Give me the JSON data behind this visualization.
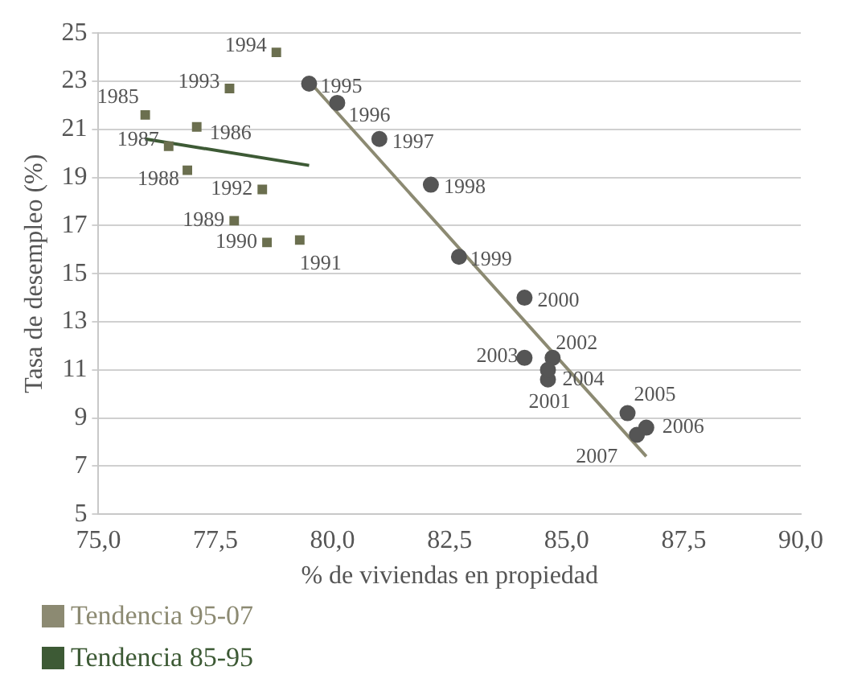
{
  "chart_data": {
    "type": "scatter",
    "xlabel": "% de viviendas en propiedad",
    "ylabel": "Tasa de desempleo (%)",
    "xlim": [
      75,
      90
    ],
    "xticks": [
      {
        "value": 75,
        "label": "75,0"
      },
      {
        "value": 77.5,
        "label": "77,5"
      },
      {
        "value": 80,
        "label": "80,0"
      },
      {
        "value": 82.5,
        "label": "82,5"
      },
      {
        "value": 85,
        "label": "85,0"
      },
      {
        "value": 87.5,
        "label": "87,5"
      },
      {
        "value": 90,
        "label": "90,0"
      }
    ],
    "ylim": [
      5,
      25
    ],
    "yticks": [
      5,
      7,
      9,
      11,
      13,
      15,
      17,
      19,
      21,
      23,
      25
    ],
    "grid": "y",
    "legend": "bottom",
    "series": [
      {
        "marker": "square",
        "color": "#6b6f4f",
        "x": [
          76.0,
          77.1,
          76.5,
          76.9,
          77.9,
          78.6,
          79.3,
          78.5,
          77.8,
          78.8
        ],
        "values": [
          21.6,
          21.1,
          20.3,
          19.3,
          17.2,
          16.3,
          16.4,
          18.5,
          22.7,
          24.2
        ]
      },
      {
        "marker": "circle",
        "color": "#555555",
        "x": [
          79.5,
          80.1,
          81.0,
          82.1,
          82.7,
          84.1,
          84.6,
          84.7,
          84.1,
          84.6,
          86.3,
          86.7,
          86.5
        ],
        "values": [
          22.9,
          22.1,
          20.6,
          18.7,
          15.7,
          14.0,
          10.6,
          11.5,
          11.5,
          11.0,
          9.2,
          8.6,
          8.3
        ]
      },
      {
        "type": "line",
        "name": "Tendencia 95-07",
        "color": "#8c8a72",
        "x": [
          79.5,
          86.7
        ],
        "values": [
          23.0,
          7.4
        ]
      },
      {
        "type": "line",
        "name": "Tendencia 85-95",
        "color": "#3d5a35",
        "x": [
          76.0,
          79.5
        ],
        "values": [
          20.6,
          19.5
        ]
      }
    ],
    "annotations": [
      {
        "text": "1985",
        "x": 76.0,
        "y": 21.6
      },
      {
        "text": "1986",
        "x": 77.1,
        "y": 21.1
      },
      {
        "text": "1987",
        "x": 76.5,
        "y": 20.3
      },
      {
        "text": "1988",
        "x": 76.9,
        "y": 19.3
      },
      {
        "text": "1989",
        "x": 77.9,
        "y": 17.2
      },
      {
        "text": "1990",
        "x": 78.6,
        "y": 16.3
      },
      {
        "text": "1991",
        "x": 79.3,
        "y": 16.4
      },
      {
        "text": "1992",
        "x": 78.5,
        "y": 18.5
      },
      {
        "text": "1993",
        "x": 77.8,
        "y": 22.7
      },
      {
        "text": "1994",
        "x": 78.8,
        "y": 24.2
      },
      {
        "text": "1995",
        "x": 79.5,
        "y": 22.9
      },
      {
        "text": "1996",
        "x": 80.1,
        "y": 22.1
      },
      {
        "text": "1997",
        "x": 81.0,
        "y": 20.6
      },
      {
        "text": "1998",
        "x": 82.1,
        "y": 18.7
      },
      {
        "text": "1999",
        "x": 82.7,
        "y": 15.7
      },
      {
        "text": "2000",
        "x": 84.1,
        "y": 14.0
      },
      {
        "text": "2001",
        "x": 84.6,
        "y": 10.6
      },
      {
        "text": "2002",
        "x": 84.7,
        "y": 11.5
      },
      {
        "text": "2003",
        "x": 84.1,
        "y": 11.5
      },
      {
        "text": "2004",
        "x": 84.6,
        "y": 11.0
      },
      {
        "text": "2005",
        "x": 86.3,
        "y": 9.2
      },
      {
        "text": "2006",
        "x": 86.7,
        "y": 8.6
      },
      {
        "text": "2007",
        "x": 86.5,
        "y": 8.3
      }
    ]
  }
}
